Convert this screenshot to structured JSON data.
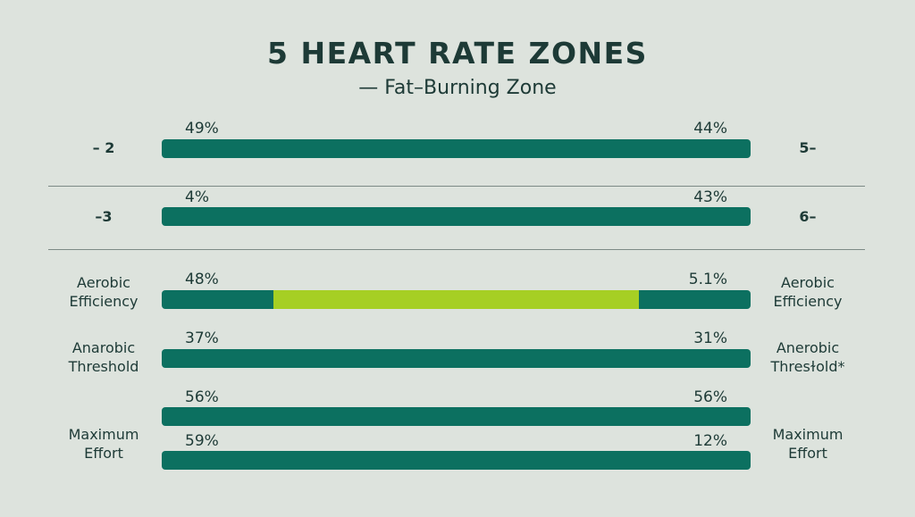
{
  "chart_data": {
    "type": "bar",
    "title": "5 HEART RATE ZONES",
    "subtitle": "— Fat–Burning Zone",
    "rows": [
      {
        "left_label": "– 2",
        "right_label": "5–",
        "left_value": "49%",
        "right_value": "44%",
        "highlight": null
      },
      {
        "left_label": "–3",
        "right_label": "6–",
        "left_value": "4%",
        "right_value": "43%",
        "highlight": null
      },
      {
        "left_label": "Aerobic\nEfficiency",
        "right_label": "Aerobic\nEfficiency",
        "left_value": "48%",
        "right_value": "5.1%",
        "highlight": {
          "start": 0.19,
          "end": 0.81
        }
      },
      {
        "left_label": "Anarobic\nThreshold",
        "right_label": "Anerobic\nThresɫold*",
        "left_value": "37%",
        "right_value": "31%",
        "highlight": null
      },
      {
        "left_label": "",
        "right_label": "",
        "left_value": "56%",
        "right_value": "56%",
        "highlight": null
      },
      {
        "left_label": "Maximum\nEffort",
        "right_label": "Maximum\nEffort",
        "left_value": "59%",
        "right_value": "12%",
        "highlight": null
      }
    ]
  },
  "colors": {
    "background": "#dde3dd",
    "bar": "#0c7060",
    "highlight": "#a6cf24",
    "text": "#1d3a36"
  }
}
